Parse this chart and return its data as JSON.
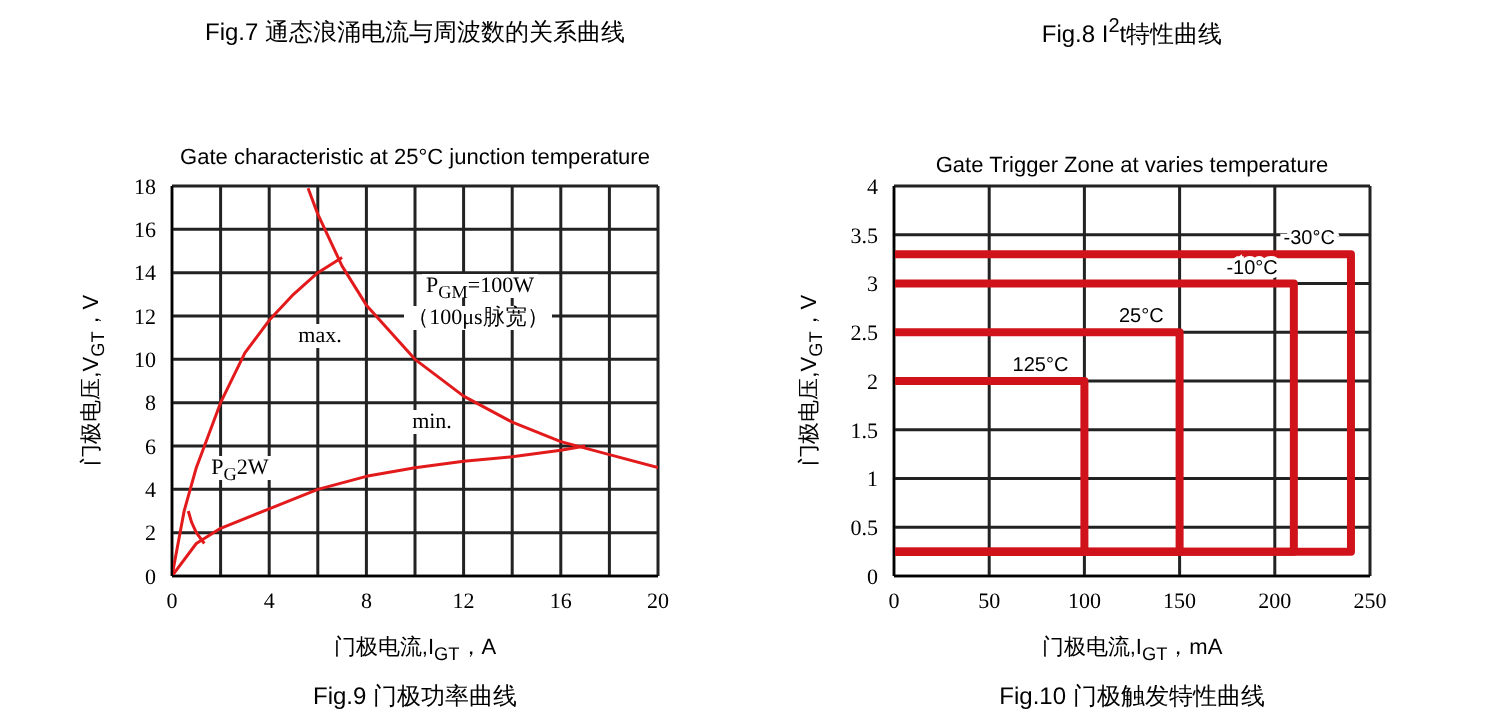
{
  "chart_data": [
    {
      "type": "line",
      "title": "Gate characteristic at 25°C junction temperature",
      "xlabel": "门极电流,I$_{GT}$，A",
      "ylabel": "门极电压,V$_{GT}$，V",
      "annotations": [
        "Fig.7 通态浪涌电流与周波数的关系曲线",
        "Fig.9 门极功率曲线",
        "max.",
        "min.",
        "P$_{GM}$=100W",
        "（100μs脉宽）",
        "P$_{G}$2W"
      ],
      "series": [
        {
          "color": "#e31a1c",
          "x": [
            0,
            0.5,
            1,
            2,
            3,
            4,
            5,
            6,
            7
          ],
          "values": [
            0,
            3,
            5,
            8,
            10.3,
            11.8,
            13,
            14,
            14.7
          ]
        },
        {
          "color": "#e31a1c",
          "x": [
            0,
            1,
            2,
            4,
            6,
            8,
            10,
            12,
            14,
            16,
            17
          ],
          "values": [
            0,
            1.5,
            2.2,
            3.1,
            4,
            4.6,
            5,
            5.3,
            5.5,
            5.8,
            6
          ]
        },
        {
          "color": "#e31a1c",
          "x": [
            5.6,
            6,
            7,
            8,
            10,
            12,
            14,
            16,
            18,
            20
          ],
          "values": [
            17.9,
            16.7,
            14.3,
            12.5,
            10,
            8.3,
            7.1,
            6.2,
            5.6,
            5
          ]
        },
        {
          "color": "#e31a1c",
          "x": [
            0.67,
            0.8,
            1,
            1.33
          ],
          "values": [
            3,
            2.5,
            2,
            1.5
          ]
        }
      ],
      "xlim": [
        0,
        20
      ],
      "xticks": [
        0,
        {
          "value": 2,
          "label": null
        },
        4,
        {
          "value": 6,
          "label": null
        },
        8,
        {
          "value": 10,
          "label": null
        },
        12,
        {
          "value": 14,
          "label": null
        },
        16,
        {
          "value": 18,
          "label": null
        },
        20
      ],
      "ylim": [
        0,
        18
      ],
      "yticks": [
        0,
        2,
        4,
        6,
        8,
        10,
        12,
        14,
        16,
        18
      ],
      "grid": true,
      "line_style": "solid"
    },
    {
      "type": "line",
      "title": "Gate Trigger Zone at varies temperature",
      "xlabel": "门极电流,I$_{GT}$，mA",
      "ylabel": "门极电压,V$_{GT}$，V",
      "annotations": [
        "Fig.8 I$^{2}$t特性曲线",
        "Fig.10 门极触发特性曲线"
      ],
      "series": [
        {
          "name": "-30°C",
          "color": "#d0121b",
          "x": [
            0,
            240,
            240,
            0
          ],
          "values": [
            3.3,
            3.3,
            0.25,
            0.25
          ]
        },
        {
          "name": "-10°C",
          "color": "#d0121b",
          "x": [
            0,
            210,
            210,
            0
          ],
          "values": [
            3,
            3,
            0.25,
            0.25
          ]
        },
        {
          "name": "25°C",
          "color": "#d0121b",
          "x": [
            0,
            150,
            150,
            0
          ],
          "values": [
            2.5,
            2.5,
            0.25,
            0.25
          ]
        },
        {
          "name": "125°C",
          "color": "#d0121b",
          "x": [
            0,
            100,
            100,
            0
          ],
          "values": [
            2,
            2,
            0.25,
            0.25
          ]
        }
      ],
      "xlim": [
        0,
        250
      ],
      "xticks": [
        0,
        50,
        100,
        150,
        200,
        250
      ],
      "ylim": [
        0,
        4
      ],
      "yticks": [
        0,
        0.5,
        1,
        1.5,
        2,
        2.5,
        3,
        3.5,
        4
      ],
      "grid": true,
      "line_style": "solid"
    }
  ]
}
